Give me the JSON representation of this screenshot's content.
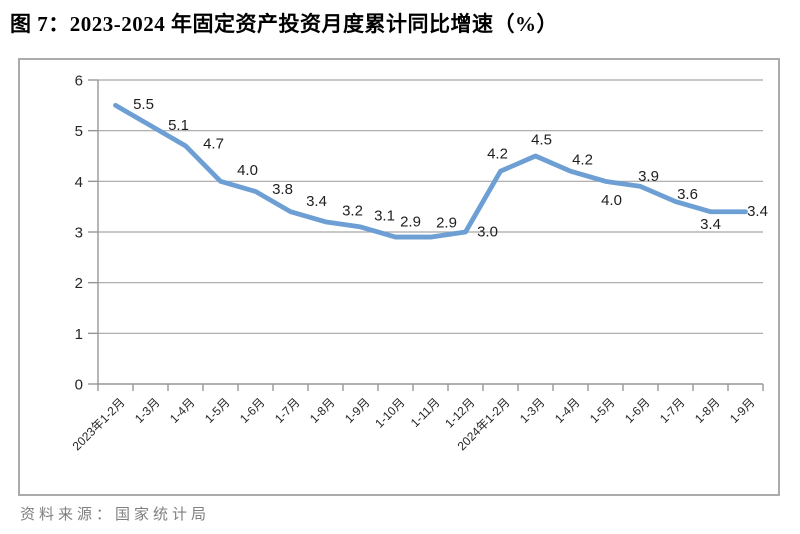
{
  "page": {
    "title": "图 7：2023-2024 年固定资产投资月度累计同比增速（%）",
    "source_note": "资料来源：国家统计局"
  },
  "chart_data": {
    "type": "line",
    "title": "图 7：2023-2024 年固定资产投资月度累计同比增速（%）",
    "categories": [
      "2023年1-2月",
      "1-3月",
      "1-4月",
      "1-5月",
      "1-6月",
      "1-7月",
      "1-8月",
      "1-9月",
      "1-10月",
      "1-11月",
      "1-12月",
      "2024年1-2月",
      "1-3月",
      "1-4月",
      "1-5月",
      "1-6月",
      "1-7月",
      "1-8月",
      "1-9月"
    ],
    "values": [
      5.5,
      5.1,
      4.7,
      4.0,
      3.8,
      3.4,
      3.2,
      3.1,
      2.9,
      2.9,
      3.0,
      4.2,
      4.5,
      4.2,
      4.0,
      3.9,
      3.6,
      3.4,
      3.4
    ],
    "xlabel": "",
    "ylabel": "",
    "ylim": [
      0,
      6
    ],
    "ytick_interval": 1,
    "yticks": [
      0,
      1,
      2,
      3,
      4,
      5,
      6
    ],
    "grid": true,
    "legend": "none",
    "data_labels": true,
    "label_decimals": 1
  },
  "colors": {
    "line": "#6D9FD4",
    "grid": "#A6A6A6",
    "axis": "#969696",
    "frame_border": "#ABABAB",
    "data_label_text": "#1F1F1F",
    "source_text": "#7F7F7F"
  }
}
